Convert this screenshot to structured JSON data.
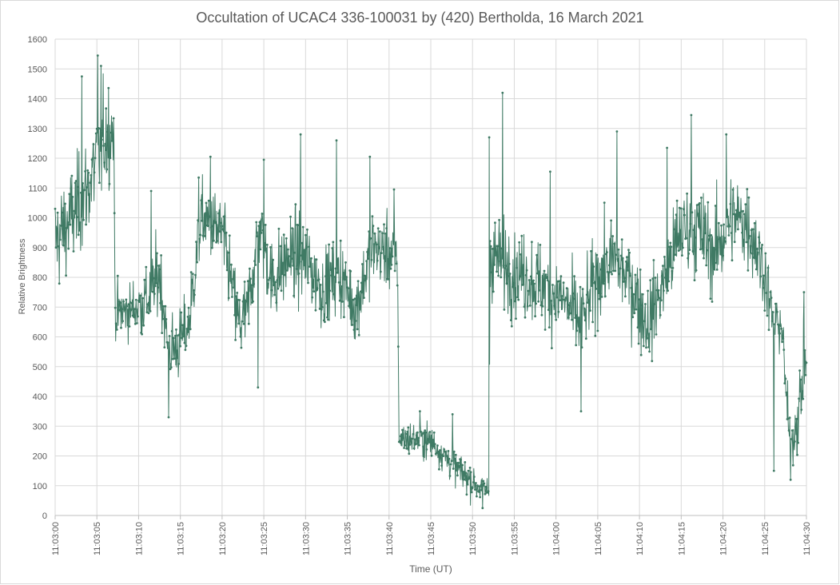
{
  "chart_data": {
    "type": "line",
    "title": "Occultation of UCAC4 336-100031 by (420) Bertholda, 16 March 2021",
    "xlabel": "Time (UT)",
    "ylabel": "Relative Brightness",
    "ylim": [
      0,
      1600
    ],
    "yticks": [
      0,
      100,
      200,
      300,
      400,
      500,
      600,
      700,
      800,
      900,
      1000,
      1100,
      1200,
      1300,
      1400,
      1500,
      1600
    ],
    "xlim_seconds": [
      0,
      90
    ],
    "xticks": [
      "11:03:00",
      "11:03:05",
      "11:03:10",
      "11:03:15",
      "11:03:20",
      "11:03:25",
      "11:03:30",
      "11:03:35",
      "11:03:40",
      "11:03:45",
      "11:03:50",
      "11:03:55",
      "11:04:00",
      "11:04:05",
      "11:04:10",
      "11:04:15",
      "11:04:20",
      "11:04:25",
      "11:04:30"
    ],
    "grid": true,
    "legend": "none",
    "series": [
      {
        "name": "",
        "color": "#3f7a64",
        "marker": "dot",
        "x_label": "seconds after 11:03:00 UT",
        "trend": {
          "t": [
            0,
            2,
            4,
            5,
            6,
            7,
            7.2,
            9,
            11,
            12.5,
            13.5,
            14.5,
            16,
            17.5,
            20,
            22,
            23,
            24.5,
            26,
            28,
            30,
            32,
            34,
            36,
            38,
            40,
            41,
            41.2,
            45,
            48,
            51,
            52,
            52.1,
            55,
            58,
            61,
            63,
            65,
            67,
            69,
            71,
            73,
            75,
            77,
            79,
            81,
            83,
            85,
            86,
            87,
            88,
            89,
            90
          ],
          "y": [
            920,
            1000,
            1100,
            1200,
            1280,
            1300,
            680,
            690,
            720,
            820,
            560,
            560,
            640,
            1000,
            950,
            640,
            680,
            980,
            780,
            870,
            860,
            760,
            820,
            690,
            900,
            880,
            860,
            260,
            250,
            160,
            90,
            80,
            880,
            820,
            780,
            720,
            640,
            810,
            860,
            780,
            640,
            790,
            960,
            960,
            880,
            1000,
            980,
            820,
            640,
            650,
            230,
            330,
            560
          ],
          "noise_sd": [
            130,
            130,
            130,
            140,
            140,
            120,
            70,
            70,
            90,
            100,
            90,
            90,
            90,
            90,
            100,
            100,
            100,
            100,
            110,
            110,
            110,
            100,
            100,
            90,
            100,
            90,
            80,
            45,
            45,
            45,
            40,
            40,
            110,
            110,
            110,
            110,
            110,
            110,
            110,
            110,
            110,
            110,
            120,
            120,
            120,
            120,
            120,
            100,
            90,
            80,
            70,
            90,
            110
          ]
        },
        "excursions": [
          {
            "t": 3.2,
            "y": 1475
          },
          {
            "t": 5.1,
            "y": 1545
          },
          {
            "t": 5.5,
            "y": 1510
          },
          {
            "t": 11.5,
            "y": 1090
          },
          {
            "t": 13.6,
            "y": 330
          },
          {
            "t": 17.2,
            "y": 1135
          },
          {
            "t": 18.6,
            "y": 1205
          },
          {
            "t": 24.3,
            "y": 430
          },
          {
            "t": 25.0,
            "y": 1195
          },
          {
            "t": 29.4,
            "y": 1280
          },
          {
            "t": 33.7,
            "y": 1260
          },
          {
            "t": 37.7,
            "y": 1205
          },
          {
            "t": 40.6,
            "y": 1095
          },
          {
            "t": 43.7,
            "y": 350
          },
          {
            "t": 47.6,
            "y": 340
          },
          {
            "t": 51.2,
            "y": 25
          },
          {
            "t": 52.0,
            "y": 1270
          },
          {
            "t": 53.6,
            "y": 1420
          },
          {
            "t": 59.3,
            "y": 1155
          },
          {
            "t": 63.0,
            "y": 350
          },
          {
            "t": 67.3,
            "y": 1290
          },
          {
            "t": 73.3,
            "y": 1235
          },
          {
            "t": 76.2,
            "y": 1345
          },
          {
            "t": 80.4,
            "y": 1280
          },
          {
            "t": 86.1,
            "y": 150
          },
          {
            "t": 89.7,
            "y": 750
          }
        ]
      }
    ]
  }
}
